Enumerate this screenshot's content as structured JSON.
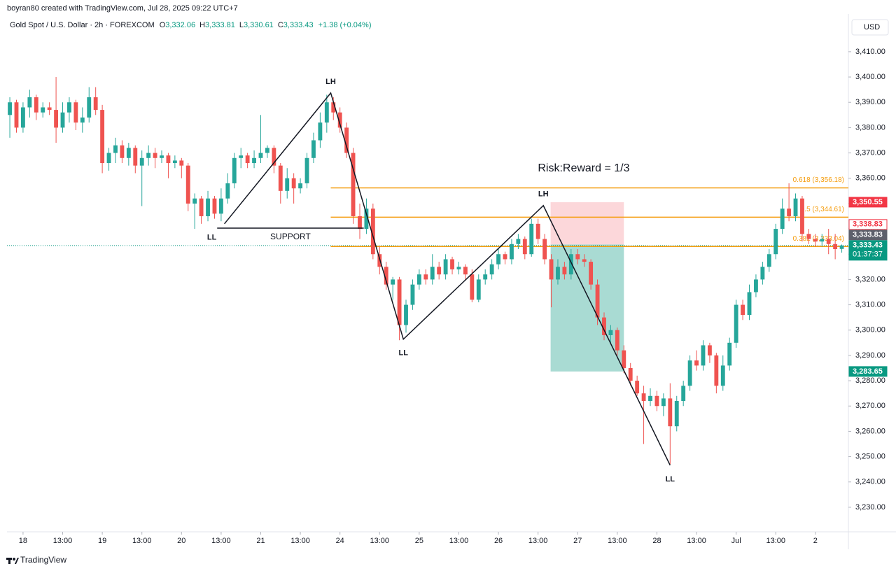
{
  "header": {
    "attribution": "boyran80 created with TradingView.com, Jul 28, 2025 09:22 UTC+7",
    "symbol": "Gold Spot / U.S. Dollar · 2h · FOREXCOM",
    "ohlc": [
      {
        "key": "O",
        "value": "3,332.06"
      },
      {
        "key": "H",
        "value": "3,333.81"
      },
      {
        "key": "L",
        "value": "3,330.61"
      },
      {
        "key": "C",
        "value": "3,333.43"
      }
    ],
    "change": "+1.38 (+0.04%)"
  },
  "chart_data": {
    "type": "candlestick",
    "currency": "USD",
    "up_color": "#26a69a",
    "down_color": "#ef5350",
    "xlim": [
      -0.43,
      127
    ],
    "ylim": [
      3220.3,
      3424.9
    ],
    "yticks": [
      {
        "value": 3230,
        "label": "3,230.00"
      },
      {
        "value": 3240,
        "label": "3,240.00"
      },
      {
        "value": 3250,
        "label": "3,250.00"
      },
      {
        "value": 3260,
        "label": "3,260.00"
      },
      {
        "value": 3270,
        "label": "3,270.00"
      },
      {
        "value": 3280,
        "label": "3,280.00"
      },
      {
        "value": 3290,
        "label": "3,290.00"
      },
      {
        "value": 3300,
        "label": "3,300.00"
      },
      {
        "value": 3310,
        "label": "3,310.00"
      },
      {
        "value": 3320,
        "label": "3,320.00"
      },
      {
        "value": 3330,
        "label": "3,330.00"
      },
      {
        "value": 3340,
        "label": "3,340.00"
      },
      {
        "value": 3350,
        "label": "3,350.00"
      },
      {
        "value": 3360,
        "label": "3,360.00"
      },
      {
        "value": 3370,
        "label": "3,370.00"
      },
      {
        "value": 3380,
        "label": "3,380.00"
      },
      {
        "value": 3390,
        "label": "3,390.00"
      },
      {
        "value": 3400,
        "label": "3,400.00"
      },
      {
        "value": 3410,
        "label": "3,410.00"
      }
    ],
    "xticks": [
      {
        "value": 2,
        "label": "18"
      },
      {
        "value": 8,
        "label": "13:00"
      },
      {
        "value": 14,
        "label": "19"
      },
      {
        "value": 20,
        "label": "13:00"
      },
      {
        "value": 26,
        "label": "20"
      },
      {
        "value": 32,
        "label": "13:00"
      },
      {
        "value": 38,
        "label": "21"
      },
      {
        "value": 44,
        "label": "13:00"
      },
      {
        "value": 50,
        "label": "24"
      },
      {
        "value": 56,
        "label": "13:00"
      },
      {
        "value": 62,
        "label": "25"
      },
      {
        "value": 68,
        "label": "13:00"
      },
      {
        "value": 74,
        "label": "26"
      },
      {
        "value": 80,
        "label": "13:00"
      },
      {
        "value": 86,
        "label": "27"
      },
      {
        "value": 92,
        "label": "13:00"
      },
      {
        "value": 98,
        "label": "28"
      },
      {
        "value": 104,
        "label": "13:00"
      },
      {
        "value": 110,
        "label": "Jul"
      },
      {
        "value": 116,
        "label": "13:00"
      },
      {
        "value": 122,
        "label": "2"
      }
    ],
    "candles": [
      [
        3385,
        3392,
        3376,
        3390
      ],
      [
        3390,
        3391,
        3378,
        3380
      ],
      [
        3380,
        3390,
        3378,
        3388
      ],
      [
        3388,
        3395,
        3384,
        3392
      ],
      [
        3392,
        3393,
        3383,
        3386
      ],
      [
        3386,
        3390,
        3384,
        3388
      ],
      [
        3388,
        3390,
        3385,
        3387
      ],
      [
        3387,
        3400,
        3374,
        3380
      ],
      [
        3380,
        3390,
        3378,
        3386
      ],
      [
        3386,
        3392,
        3382,
        3390
      ],
      [
        3390,
        3391,
        3379,
        3382
      ],
      [
        3382,
        3388,
        3378,
        3384
      ],
      [
        3384,
        3396,
        3382,
        3392
      ],
      [
        3392,
        3396,
        3385,
        3387
      ],
      [
        3387,
        3389,
        3362,
        3366
      ],
      [
        3366,
        3372,
        3363,
        3370
      ],
      [
        3370,
        3376,
        3366,
        3373
      ],
      [
        3373,
        3375,
        3366,
        3368
      ],
      [
        3368,
        3374,
        3365,
        3372
      ],
      [
        3372,
        3373,
        3362,
        3365
      ],
      [
        3365,
        3371,
        3349,
        3368
      ],
      [
        3368,
        3373,
        3365,
        3370
      ],
      [
        3370,
        3372,
        3364,
        3368
      ],
      [
        3368,
        3371,
        3366,
        3369
      ],
      [
        3369,
        3370,
        3360,
        3366
      ],
      [
        3366,
        3369,
        3364,
        3367
      ],
      [
        3367,
        3368,
        3360,
        3365
      ],
      [
        3365,
        3366,
        3347,
        3350
      ],
      [
        3350,
        3354,
        3340,
        3352
      ],
      [
        3352,
        3353,
        3342,
        3345
      ],
      [
        3345,
        3355,
        3343,
        3352
      ],
      [
        3352,
        3353,
        3344,
        3346
      ],
      [
        3346,
        3356,
        3343,
        3352
      ],
      [
        3352,
        3362,
        3350,
        3358
      ],
      [
        3358,
        3370,
        3356,
        3368
      ],
      [
        3368,
        3372,
        3364,
        3369
      ],
      [
        3369,
        3370,
        3364,
        3366
      ],
      [
        3366,
        3371,
        3364,
        3368
      ],
      [
        3368,
        3385,
        3366,
        3370
      ],
      [
        3370,
        3373,
        3368,
        3372
      ],
      [
        3372,
        3373,
        3362,
        3365
      ],
      [
        3365,
        3366,
        3350,
        3355
      ],
      [
        3355,
        3364,
        3352,
        3360
      ],
      [
        3360,
        3362,
        3350,
        3356
      ],
      [
        3356,
        3360,
        3354,
        3358
      ],
      [
        3358,
        3370,
        3356,
        3368
      ],
      [
        3368,
        3378,
        3366,
        3375
      ],
      [
        3375,
        3386,
        3372,
        3382
      ],
      [
        3382,
        3393,
        3378,
        3390
      ],
      [
        3390,
        3392,
        3383,
        3386
      ],
      [
        3386,
        3388,
        3378,
        3380
      ],
      [
        3380,
        3382,
        3368,
        3370
      ],
      [
        3370,
        3372,
        3342,
        3345
      ],
      [
        3345,
        3350,
        3336,
        3340
      ],
      [
        3340,
        3352,
        3338,
        3348
      ],
      [
        3348,
        3350,
        3328,
        3330
      ],
      [
        3330,
        3333,
        3322,
        3325
      ],
      [
        3325,
        3327,
        3316,
        3318
      ],
      [
        3318,
        3321,
        3312,
        3320
      ],
      [
        3320,
        3321,
        3296,
        3302
      ],
      [
        3302,
        3312,
        3299,
        3310
      ],
      [
        3310,
        3320,
        3308,
        3318
      ],
      [
        3318,
        3324,
        3316,
        3322
      ],
      [
        3322,
        3324,
        3318,
        3320
      ],
      [
        3320,
        3330,
        3318,
        3325
      ],
      [
        3325,
        3327,
        3320,
        3322
      ],
      [
        3322,
        3330,
        3320,
        3328
      ],
      [
        3328,
        3329,
        3322,
        3324
      ],
      [
        3324,
        3327,
        3322,
        3325
      ],
      [
        3325,
        3326,
        3320,
        3322
      ],
      [
        3322,
        3324,
        3311,
        3312
      ],
      [
        3312,
        3322,
        3311,
        3320
      ],
      [
        3320,
        3324,
        3318,
        3322
      ],
      [
        3322,
        3328,
        3320,
        3326
      ],
      [
        3326,
        3332,
        3324,
        3330
      ],
      [
        3330,
        3331,
        3326,
        3328
      ],
      [
        3328,
        3336,
        3326,
        3334
      ],
      [
        3334,
        3338,
        3332,
        3336
      ],
      [
        3336,
        3337,
        3328,
        3330
      ],
      [
        3330,
        3344,
        3329,
        3342
      ],
      [
        3342,
        3344,
        3334,
        3336
      ],
      [
        3336,
        3338,
        3326,
        3328
      ],
      [
        3328,
        3330,
        3309,
        3320
      ],
      [
        3320,
        3328,
        3318,
        3325
      ],
      [
        3325,
        3327,
        3320,
        3322
      ],
      [
        3322,
        3332,
        3320,
        3330
      ],
      [
        3330,
        3332,
        3326,
        3328
      ],
      [
        3328,
        3330,
        3325,
        3327
      ],
      [
        3327,
        3328,
        3316,
        3318
      ],
      [
        3318,
        3320,
        3302,
        3305
      ],
      [
        3305,
        3307,
        3296,
        3298
      ],
      [
        3298,
        3302,
        3295,
        3300
      ],
      [
        3300,
        3301,
        3290,
        3292
      ],
      [
        3292,
        3294,
        3283,
        3285
      ],
      [
        3285,
        3287,
        3278,
        3280
      ],
      [
        3280,
        3282,
        3274,
        3275
      ],
      [
        3275,
        3278,
        3255,
        3272
      ],
      [
        3272,
        3277,
        3270,
        3274
      ],
      [
        3274,
        3276,
        3268,
        3270
      ],
      [
        3270,
        3275,
        3266,
        3273
      ],
      [
        3273,
        3279,
        3247,
        3262
      ],
      [
        3262,
        3274,
        3260,
        3272
      ],
      [
        3272,
        3280,
        3270,
        3278
      ],
      [
        3278,
        3290,
        3276,
        3288
      ],
      [
        3288,
        3292,
        3284,
        3286
      ],
      [
        3286,
        3296,
        3284,
        3294
      ],
      [
        3294,
        3295,
        3287,
        3290
      ],
      [
        3290,
        3291,
        3275,
        3278
      ],
      [
        3278,
        3290,
        3276,
        3286
      ],
      [
        3286,
        3297,
        3284,
        3295
      ],
      [
        3295,
        3312,
        3293,
        3310
      ],
      [
        3310,
        3312,
        3304,
        3306
      ],
      [
        3306,
        3318,
        3304,
        3315
      ],
      [
        3315,
        3322,
        3313,
        3320
      ],
      [
        3320,
        3327,
        3318,
        3325
      ],
      [
        3325,
        3332,
        3323,
        3330
      ],
      [
        3330,
        3342,
        3328,
        3340
      ],
      [
        3340,
        3352,
        3338,
        3348
      ],
      [
        3348,
        3358,
        3343,
        3345
      ],
      [
        3345,
        3354,
        3343,
        3352
      ],
      [
        3352,
        3353,
        3335,
        3338
      ],
      [
        3338,
        3340,
        3334,
        3336
      ],
      [
        3336,
        3338,
        3333,
        3335
      ],
      [
        3335,
        3338,
        3333,
        3336
      ],
      [
        3336,
        3340,
        3330,
        3334
      ],
      [
        3334,
        3338,
        3328,
        3332
      ],
      [
        3332.06,
        3333.81,
        3330.61,
        3333.43
      ]
    ],
    "zigzag": {
      "x": [
        32.5,
        48.6,
        59.6,
        80.8,
        100
      ],
      "y": [
        3342,
        3393.7,
        3296.4,
        3349.2,
        3246.6
      ],
      "labels": [
        "LL",
        "LH",
        "LL",
        "LH",
        "LL"
      ]
    },
    "support": {
      "value": 3340.3,
      "x": [
        31.4,
        53.6
      ],
      "label": "SUPPORT"
    },
    "fib": {
      "x_start": 48.6,
      "color": "#f59d0e",
      "levels": [
        {
          "value": 3356.18,
          "label": "0.618 (3,356.18)"
        },
        {
          "value": 3344.61,
          "label": "0.5 (3,344.61)"
        },
        {
          "value": 3333.04,
          "label": "0.382 (3,333.04)"
        }
      ]
    },
    "position": {
      "x": [
        81.9,
        93
      ],
      "stop": 3350.55,
      "entry": 3333.83,
      "target": 3283.65,
      "title": "Risk:Reward = 1/3"
    },
    "price_labels": [
      {
        "value": 3350.55,
        "label": "3,350.55",
        "bg": "#f23645",
        "fg": "#ffffff"
      },
      {
        "value": 3338.83,
        "label": "3,338.83",
        "bg": "#ffffff",
        "fg": "#f23645"
      },
      {
        "value": 3333.83,
        "label": "3,333.83",
        "bg": "#5d606b",
        "fg": "#ffffff"
      },
      {
        "value": 3333.43,
        "label": "3,333.43",
        "sub": "01:37:37",
        "bg": "#089981",
        "fg": "#ffffff"
      },
      {
        "value": 3283.65,
        "label": "3,283.65",
        "bg": "#089981",
        "fg": "#ffffff"
      }
    ]
  },
  "footer": {
    "brand": "TradingView"
  }
}
